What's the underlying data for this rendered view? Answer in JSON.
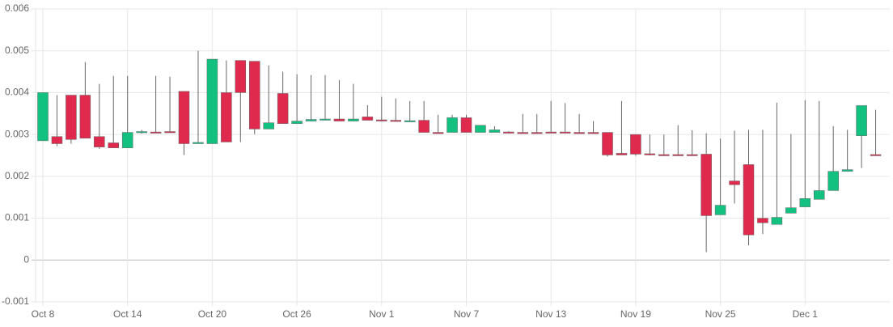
{
  "chart_data": {
    "type": "candlestick",
    "categories": [
      "Oct 8",
      null,
      null,
      null,
      null,
      null,
      "Oct 14",
      null,
      null,
      null,
      null,
      null,
      "Oct 20",
      null,
      null,
      null,
      null,
      null,
      "Oct 26",
      null,
      null,
      null,
      null,
      null,
      "Nov 1",
      null,
      null,
      null,
      null,
      null,
      "Nov 7",
      null,
      null,
      null,
      null,
      null,
      "Nov 13",
      null,
      null,
      null,
      null,
      null,
      "Nov 19",
      null,
      null,
      null,
      null,
      null,
      "Nov 25",
      null,
      null,
      null,
      null,
      null,
      "Dec 1",
      null,
      null,
      null,
      null,
      null
    ],
    "open": [
      0.00285,
      0.00295,
      0.00394,
      0.00394,
      0.00295,
      0.0028,
      0.00268,
      0.00305,
      0.00306,
      0.00307,
      0.00403,
      0.00278,
      0.00278,
      0.004,
      0.00477,
      0.00475,
      0.00313,
      0.00398,
      0.00326,
      0.00332,
      0.00336,
      0.00337,
      0.00332,
      0.00342,
      0.00335,
      0.00334,
      0.00333,
      0.00334,
      0.00305,
      0.00305,
      0.0034,
      0.00305,
      0.00305,
      0.00306,
      0.00305,
      0.00305,
      0.00306,
      0.00306,
      0.00305,
      0.00305,
      0.00305,
      0.00255,
      0.003,
      0.00254,
      0.00252,
      0.00252,
      0.00252,
      0.00253,
      0.00108,
      0.00189,
      0.00228,
      0.001,
      0.00085,
      0.00112,
      0.00127,
      0.00145,
      0.00166,
      0.00212,
      0.00297,
      0.00252
    ],
    "high": [
      0.004,
      0.00394,
      0.00394,
      0.00473,
      0.00421,
      0.0044,
      0.0044,
      0.00311,
      0.0044,
      0.00438,
      0.00403,
      0.005,
      0.0048,
      0.00477,
      0.00477,
      0.00475,
      0.00465,
      0.0045,
      0.00444,
      0.00442,
      0.00442,
      0.0043,
      0.00421,
      0.0037,
      0.0039,
      0.00386,
      0.0038,
      0.0038,
      0.00347,
      0.00347,
      0.00347,
      0.00322,
      0.0032,
      0.00308,
      0.00349,
      0.00349,
      0.0038,
      0.00375,
      0.00349,
      0.00332,
      0.00305,
      0.0038,
      0.003,
      0.003,
      0.003,
      0.00322,
      0.0031,
      0.00303,
      0.0029,
      0.00309,
      0.00311,
      0.00311,
      0.00376,
      0.00301,
      0.00382,
      0.0038,
      0.0032,
      0.00311,
      0.00369,
      0.00359
    ],
    "low": [
      0.00285,
      0.00272,
      0.00278,
      0.00291,
      0.00266,
      0.00268,
      0.00268,
      0.00302,
      0.00304,
      0.00304,
      0.00251,
      0.00278,
      0.00278,
      0.00282,
      0.00282,
      0.00301,
      0.00313,
      0.00326,
      0.00326,
      0.00332,
      0.00335,
      0.00332,
      0.00332,
      0.00334,
      0.00331,
      0.00331,
      0.00332,
      0.00305,
      0.00303,
      0.00305,
      0.00305,
      0.00305,
      0.00305,
      0.00303,
      0.00303,
      0.00303,
      0.00304,
      0.00304,
      0.00303,
      0.00303,
      0.00247,
      0.00251,
      0.00249,
      0.0025,
      0.00249,
      0.00249,
      0.00249,
      0.00019,
      0.00108,
      0.00135,
      0.00035,
      0.00062,
      0.00085,
      0.00112,
      0.00127,
      0.00145,
      0.00166,
      0.00212,
      0.0022,
      0.0025
    ],
    "close": [
      0.004,
      0.00278,
      0.00288,
      0.00291,
      0.0027,
      0.00268,
      0.00305,
      0.00307,
      0.00304,
      0.00305,
      0.00278,
      0.00281,
      0.0048,
      0.00282,
      0.004,
      0.00313,
      0.00328,
      0.00326,
      0.00332,
      0.00336,
      0.00337,
      0.00332,
      0.00337,
      0.00334,
      0.00333,
      0.00332,
      0.00333,
      0.00305,
      0.00304,
      0.0034,
      0.00305,
      0.00322,
      0.00311,
      0.00304,
      0.00304,
      0.00304,
      0.00305,
      0.00305,
      0.00304,
      0.00304,
      0.00251,
      0.00251,
      0.00253,
      0.00252,
      0.0025,
      0.0025,
      0.0025,
      0.00106,
      0.00131,
      0.0018,
      0.0006,
      0.00089,
      0.00102,
      0.00125,
      0.00147,
      0.00166,
      0.00212,
      0.00216,
      0.00369,
      0.00251
    ],
    "up_color": "#12c080",
    "down_color": "#df2a4e",
    "ylim": [
      -0.001,
      0.006
    ],
    "yticks": [
      -0.001,
      0,
      0.001,
      0.002,
      0.003,
      0.004,
      0.005,
      0.006
    ],
    "grid": true
  }
}
